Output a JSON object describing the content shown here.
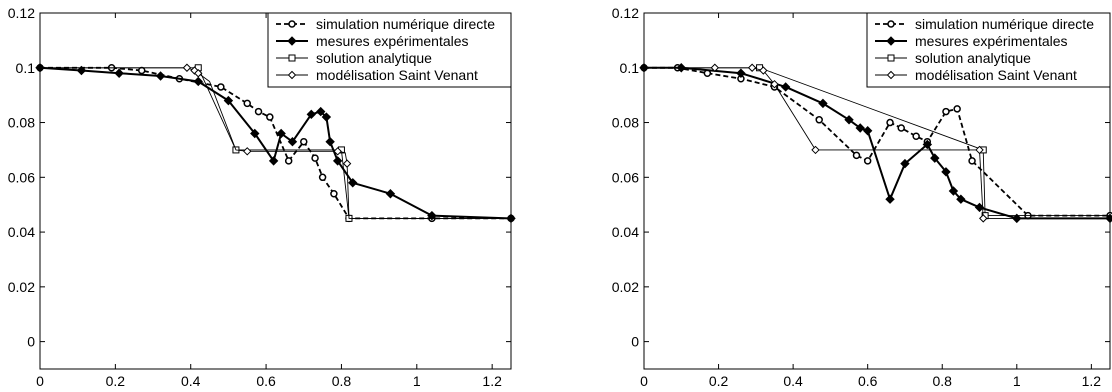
{
  "chart_data": [
    {
      "type": "line",
      "xlim": [
        0,
        1.25
      ],
      "ylim": [
        -0.01,
        0.12
      ],
      "xticks": [
        "0",
        "0.2",
        "0.4",
        "0.6",
        "0.8",
        "1",
        "1.2"
      ],
      "xtick_values": [
        0,
        0.2,
        0.4,
        0.6,
        0.8,
        1.0,
        1.2
      ],
      "yticks": [
        "0",
        "0.02",
        "0.04",
        "0.06",
        "0.08",
        "0.1",
        "0.12"
      ],
      "ytick_values": [
        0,
        0.02,
        0.04,
        0.06,
        0.08,
        0.1,
        0.12
      ],
      "legend_position": "top-right",
      "series": [
        {
          "name": "simulation numérique directe",
          "style": "dashed-circle",
          "x": [
            0,
            0.19,
            0.27,
            0.37,
            0.48,
            0.55,
            0.58,
            0.61,
            0.66,
            0.7,
            0.73,
            0.75,
            0.78,
            0.82,
            1.04,
            1.25
          ],
          "y": [
            0.1,
            0.1,
            0.099,
            0.096,
            0.093,
            0.087,
            0.084,
            0.082,
            0.066,
            0.073,
            0.067,
            0.06,
            0.054,
            0.045,
            0.045,
            0.045
          ]
        },
        {
          "name": "mesures expérimentales",
          "style": "solid-filled-diamond",
          "x": [
            0,
            0.11,
            0.21,
            0.32,
            0.42,
            0.5,
            0.57,
            0.62,
            0.64,
            0.67,
            0.72,
            0.745,
            0.76,
            0.77,
            0.79,
            0.83,
            0.93,
            1.04,
            1.25
          ],
          "y": [
            0.1,
            0.099,
            0.098,
            0.097,
            0.095,
            0.088,
            0.076,
            0.066,
            0.076,
            0.073,
            0.083,
            0.084,
            0.082,
            0.073,
            0.066,
            0.058,
            0.054,
            0.046,
            0.045
          ]
        },
        {
          "name": "solution analytique",
          "style": "thin-square",
          "x": [
            0,
            0.42,
            0.52,
            0.8,
            0.82,
            1.25
          ],
          "y": [
            0.1,
            0.1,
            0.07,
            0.07,
            0.045,
            0.045
          ],
          "markers_x": [
            0.42,
            0.52,
            0.8,
            0.82
          ],
          "markers_y": [
            0.1,
            0.07,
            0.07,
            0.045
          ]
        },
        {
          "name": "modélisation Saint Venant",
          "style": "thin-open-diamond",
          "x": [
            0,
            0.39,
            0.41,
            0.42,
            0.45,
            0.52,
            0.55,
            0.79,
            0.81,
            0.815,
            0.82,
            1.25
          ],
          "y": [
            0.1,
            0.1,
            0.099,
            0.098,
            0.095,
            0.07,
            0.0695,
            0.0695,
            0.069,
            0.065,
            0.045,
            0.045
          ],
          "markers_x": [
            0.39,
            0.41,
            0.42,
            0.55,
            0.79,
            0.815
          ],
          "markers_y": [
            0.1,
            0.099,
            0.098,
            0.0695,
            0.0695,
            0.065
          ]
        }
      ]
    },
    {
      "type": "line",
      "xlim": [
        0,
        1.25
      ],
      "ylim": [
        -0.01,
        0.12
      ],
      "xticks": [
        "0",
        "0.2",
        "0.4",
        "0.6",
        "0.8",
        "1",
        "1.2"
      ],
      "xtick_values": [
        0,
        0.2,
        0.4,
        0.6,
        0.8,
        1.0,
        1.2
      ],
      "yticks": [
        "0",
        "0.02",
        "0.04",
        "0.06",
        "0.08",
        "0.1",
        "0.12"
      ],
      "ytick_values": [
        0,
        0.02,
        0.04,
        0.06,
        0.08,
        0.1,
        0.12
      ],
      "legend_position": "top-right",
      "series": [
        {
          "name": "simulation numérique directe",
          "style": "dashed-circle",
          "x": [
            0,
            0.09,
            0.17,
            0.26,
            0.35,
            0.47,
            0.57,
            0.6,
            0.66,
            0.69,
            0.73,
            0.76,
            0.81,
            0.84,
            0.88,
            1.03,
            1.25
          ],
          "y": [
            0.1,
            0.1,
            0.098,
            0.096,
            0.093,
            0.081,
            0.068,
            0.066,
            0.08,
            0.078,
            0.075,
            0.073,
            0.084,
            0.085,
            0.066,
            0.046,
            0.046
          ]
        },
        {
          "name": "mesures expérimentales",
          "style": "solid-filled-diamond",
          "x": [
            0,
            0.1,
            0.26,
            0.38,
            0.48,
            0.55,
            0.58,
            0.6,
            0.66,
            0.7,
            0.76,
            0.78,
            0.81,
            0.83,
            0.85,
            0.9,
            1.0,
            1.25
          ],
          "y": [
            0.1,
            0.1,
            0.098,
            0.093,
            0.087,
            0.081,
            0.078,
            0.077,
            0.052,
            0.065,
            0.072,
            0.067,
            0.062,
            0.055,
            0.052,
            0.049,
            0.045,
            0.045
          ]
        },
        {
          "name": "solution analytique",
          "style": "thin-square",
          "x": [
            0,
            0.31,
            0.91,
            0.915,
            1.25
          ],
          "y": [
            0.1,
            0.1,
            0.07,
            0.046,
            0.046
          ],
          "markers_x": [
            0.31,
            0.91,
            0.915
          ],
          "markers_y": [
            0.1,
            0.07,
            0.046
          ]
        },
        {
          "name": "modélisation Saint Venant",
          "style": "thin-open-diamond",
          "x": [
            0,
            0.19,
            0.29,
            0.32,
            0.35,
            0.46,
            0.9,
            0.91,
            1.25
          ],
          "y": [
            0.1,
            0.1,
            0.1,
            0.099,
            0.094,
            0.07,
            0.07,
            0.045,
            0.045
          ],
          "markers_x": [
            0.19,
            0.29,
            0.32,
            0.35,
            0.46,
            0.9,
            0.91
          ],
          "markers_y": [
            0.1,
            0.1,
            0.099,
            0.094,
            0.07,
            0.07,
            0.045
          ]
        }
      ]
    }
  ]
}
